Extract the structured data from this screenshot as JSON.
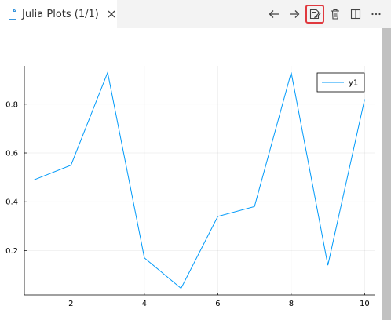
{
  "tab": {
    "label": "Julia Plots (1/1)",
    "close_icon": "close-icon",
    "file_icon": "file-icon"
  },
  "toolbar": {
    "items": [
      {
        "name": "back-arrow-icon"
      },
      {
        "name": "forward-arrow-icon"
      },
      {
        "name": "save-plot-icon"
      },
      {
        "name": "trash-icon"
      },
      {
        "name": "split-editor-icon"
      },
      {
        "name": "more-icon"
      }
    ],
    "highlight_color": "#e0393e"
  },
  "chart_data": {
    "type": "line",
    "series": [
      {
        "name": "y1",
        "color": "#009af9",
        "x": [
          1,
          2,
          3,
          4,
          5,
          6,
          7,
          8,
          9,
          10
        ],
        "y": [
          0.49,
          0.55,
          0.93,
          0.17,
          0.045,
          0.34,
          0.38,
          0.93,
          0.14,
          0.82
        ]
      }
    ],
    "xlim": [
      0.73,
      10.27
    ],
    "ylim": [
      0.018,
      0.957
    ],
    "xticks": [
      2,
      4,
      6,
      8,
      10
    ],
    "yticks": [
      0.2,
      0.4,
      0.6,
      0.8
    ],
    "xtick_labels": [
      "2",
      "4",
      "6",
      "8",
      "10"
    ],
    "ytick_labels": [
      "0.2",
      "0.4",
      "0.6",
      "0.8"
    ],
    "grid": true,
    "legend": "top-right",
    "title": "",
    "xlabel": "",
    "ylabel": ""
  }
}
